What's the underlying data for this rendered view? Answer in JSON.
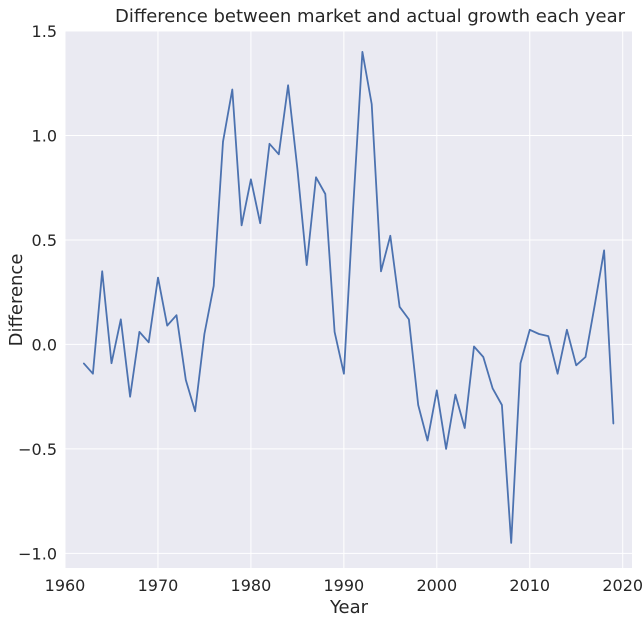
{
  "chart_data": {
    "type": "line",
    "title": "Difference between market and actual growth each year",
    "xlabel": "Year",
    "ylabel": "Difference",
    "xlim": [
      1960,
      2021
    ],
    "ylim": [
      -1.07,
      1.5
    ],
    "x_ticks": [
      1960,
      1970,
      1980,
      1990,
      2000,
      2010,
      2020
    ],
    "x_tick_labels": [
      "1960",
      "1970",
      "1980",
      "1990",
      "2000",
      "2010",
      "2020"
    ],
    "y_ticks": [
      -1.0,
      -0.5,
      0.0,
      0.5,
      1.0,
      1.5
    ],
    "y_tick_labels": [
      "−1.0",
      "−0.5",
      "0.0",
      "0.5",
      "1.0",
      "1.5"
    ],
    "grid": true,
    "colors": {
      "background": "#eaeaf2",
      "grid": "#ffffff",
      "line": "#4c72b0"
    },
    "series": [
      {
        "x": [
          1962,
          1963,
          1964,
          1965,
          1966,
          1967,
          1968,
          1969,
          1970,
          1971,
          1972,
          1973,
          1974,
          1975,
          1976,
          1977,
          1978,
          1979,
          1980,
          1981,
          1982,
          1983,
          1984,
          1985,
          1986,
          1987,
          1988,
          1989,
          1990,
          1991,
          1992,
          1993,
          1994,
          1995,
          1996,
          1997,
          1998,
          1999,
          2000,
          2001,
          2002,
          2003,
          2004,
          2005,
          2006,
          2007,
          2008,
          2009,
          2010,
          2011,
          2012,
          2013,
          2014,
          2015,
          2016,
          2017,
          2018,
          2019
        ],
        "values": [
          -0.09,
          -0.14,
          0.35,
          -0.09,
          0.12,
          -0.25,
          0.06,
          0.01,
          0.32,
          0.09,
          0.14,
          -0.17,
          -0.32,
          0.05,
          0.28,
          0.97,
          1.22,
          0.57,
          0.79,
          0.58,
          0.96,
          0.91,
          1.24,
          0.84,
          0.38,
          0.8,
          0.72,
          0.06,
          -0.14,
          0.65,
          1.4,
          1.15,
          0.35,
          0.52,
          0.18,
          0.12,
          -0.29,
          -0.46,
          -0.22,
          -0.5,
          -0.24,
          -0.4,
          -0.01,
          -0.06,
          -0.21,
          -0.29,
          -0.95,
          -0.09,
          0.07,
          0.05,
          0.04,
          -0.14,
          0.07,
          -0.1,
          -0.06,
          0.19,
          0.45,
          -0.38
        ]
      }
    ]
  }
}
